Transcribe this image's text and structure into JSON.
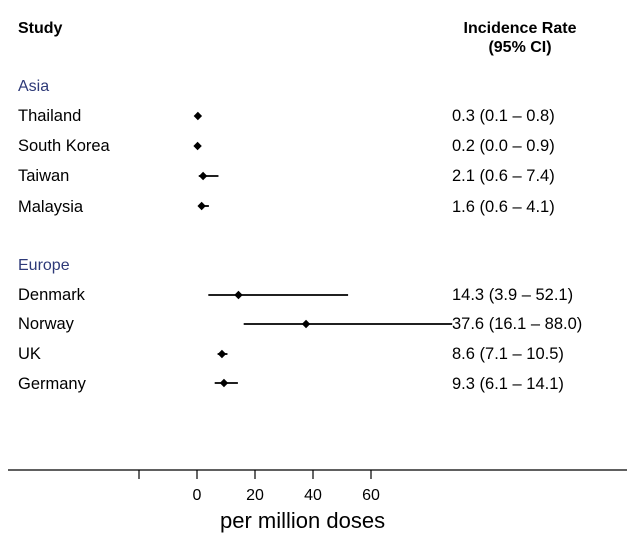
{
  "header": {
    "study_label": "Study",
    "rate_label_line1": "Incidence Rate",
    "rate_label_line2": "(95% CI)"
  },
  "groups": [
    {
      "name": "Asia",
      "studies": [
        {
          "name": "Thailand",
          "ci_text": "0.3 (0.1 – 0.8)"
        },
        {
          "name": "South Korea",
          "ci_text": "0.2 (0.0 – 0.9)"
        },
        {
          "name": "Taiwan",
          "ci_text": "2.1 (0.6 – 7.4)"
        },
        {
          "name": "Malaysia",
          "ci_text": "1.6 (0.6 – 4.1)"
        }
      ]
    },
    {
      "name": "Europe",
      "studies": [
        {
          "name": "Denmark",
          "ci_text": "14.3 (3.9 – 52.1)"
        },
        {
          "name": "Norway",
          "ci_text": "37.6 (16.1 – 88.0)"
        },
        {
          "name": "UK",
          "ci_text": "8.6 (7.1 – 10.5)"
        },
        {
          "name": "Germany",
          "ci_text": "9.3 (6.1 – 14.1)"
        }
      ]
    }
  ],
  "chart_data": {
    "type": "forest",
    "xlabel": "per million doses",
    "xlim": [
      -20,
      88
    ],
    "xticks": [
      -20,
      0,
      20,
      40,
      60
    ],
    "xtick_labels": [
      "",
      "0",
      "20",
      "40",
      "60"
    ],
    "grid": false,
    "rows": [
      {
        "group": "Asia",
        "study": "Thailand",
        "estimate": 0.3,
        "lower": 0.1,
        "upper": 0.8
      },
      {
        "group": "Asia",
        "study": "South Korea",
        "estimate": 0.2,
        "lower": 0.0,
        "upper": 0.9
      },
      {
        "group": "Asia",
        "study": "Taiwan",
        "estimate": 2.1,
        "lower": 0.6,
        "upper": 7.4
      },
      {
        "group": "Asia",
        "study": "Malaysia",
        "estimate": 1.6,
        "lower": 0.6,
        "upper": 4.1
      },
      {
        "group": "Europe",
        "study": "Denmark",
        "estimate": 14.3,
        "lower": 3.9,
        "upper": 52.1
      },
      {
        "group": "Europe",
        "study": "Norway",
        "estimate": 37.6,
        "lower": 16.1,
        "upper": 88.0
      },
      {
        "group": "Europe",
        "study": "UK",
        "estimate": 8.6,
        "lower": 7.1,
        "upper": 10.5
      },
      {
        "group": "Europe",
        "study": "Germany",
        "estimate": 9.3,
        "lower": 6.1,
        "upper": 14.1
      }
    ]
  }
}
